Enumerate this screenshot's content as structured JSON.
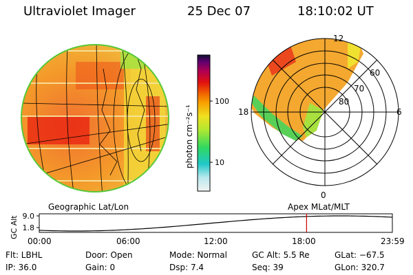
{
  "header": {
    "title": "Ultraviolet Imager",
    "date": "25 Dec 07",
    "time": "18:10:02 UT"
  },
  "colorbar": {
    "unit_label": "photon cm⁻²s⁻¹",
    "ticks": [
      "100",
      "10"
    ]
  },
  "polar_plot": {
    "mlt_labels": [
      "12",
      "18",
      "6",
      "0"
    ],
    "lat_labels": [
      "60",
      "70",
      "80"
    ]
  },
  "panel_labels": {
    "geographic": "Geographic Lat/Lon",
    "apex": "Apex  MLat/MLT"
  },
  "altitude_plot": {
    "axis_label": "GC Alt",
    "y_ticks": [
      "9.0",
      "1.8"
    ],
    "x_ticks": [
      "00:00",
      "06:00",
      "12:00",
      "18:00",
      "23:59"
    ],
    "current_time_hours": 18.17
  },
  "info": {
    "flt": "Flt: LBHL",
    "ip": "IP: 36.0",
    "door": "Door: Open",
    "gain": "Gain:   0",
    "mode": "Mode: Normal",
    "dsp": "Dsp:     7.4",
    "gc_alt": "GC Alt: 5.5 Re",
    "seq": "Seq: 39",
    "glat": "GLat: −67.5",
    "glon": "GLon: 320.7"
  },
  "colors": {
    "accent_line": "#cc0000"
  }
}
